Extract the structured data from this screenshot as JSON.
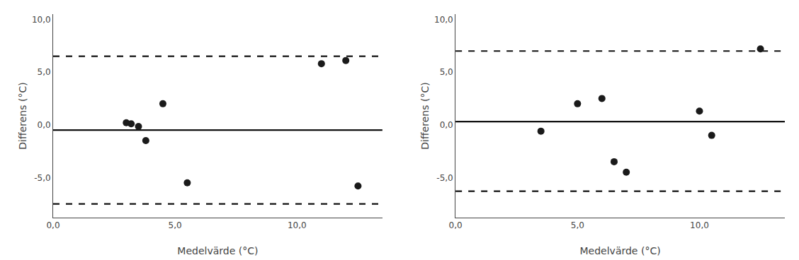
{
  "chart_data": [
    {
      "type": "scatter",
      "x": [
        3.0,
        3.2,
        3.5,
        3.8,
        4.5,
        5.5,
        11.0,
        12.0,
        12.5
      ],
      "values": [
        0.2,
        0.1,
        -0.15,
        -1.5,
        2.0,
        -5.5,
        5.8,
        6.1,
        -5.8
      ],
      "color": "#1a1a1a",
      "marker": "circle",
      "hlines": [
        {
          "value": -0.5,
          "color": "#111111",
          "line_style": "solid"
        },
        {
          "value": 6.5,
          "color": "#111111",
          "line_style": "dashed"
        },
        {
          "value": -7.5,
          "color": "#111111",
          "line_style": "dashed"
        }
      ],
      "xlim": [
        0,
        13.5
      ],
      "ylim": [
        -8.8,
        10.5
      ],
      "xticks": [
        {
          "value": 0.0,
          "label": "0,0"
        },
        {
          "value": 5.0,
          "label": "5,0"
        },
        {
          "value": 10.0,
          "label": "10,0"
        }
      ],
      "yticks": [
        {
          "value": -5.0,
          "label": "-5,0"
        },
        {
          "value": 0.0,
          "label": "0,0"
        },
        {
          "value": 5.0,
          "label": "5,0"
        },
        {
          "value": 10.0,
          "label": "10,0"
        }
      ],
      "xlabel": "Medelvärde (°C)",
      "ylabel": "Differens (°C)",
      "grid": false
    },
    {
      "type": "scatter",
      "x": [
        3.5,
        5.0,
        6.0,
        6.5,
        7.0,
        10.0,
        10.5,
        12.5
      ],
      "values": [
        -0.6,
        2.0,
        2.5,
        -3.5,
        -4.5,
        1.3,
        -1.0,
        7.2
      ],
      "color": "#1a1a1a",
      "marker": "circle",
      "hlines": [
        {
          "value": 0.3,
          "color": "#111111",
          "line_style": "solid"
        },
        {
          "value": 7.0,
          "color": "#111111",
          "line_style": "dashed"
        },
        {
          "value": -6.3,
          "color": "#111111",
          "line_style": "dashed"
        }
      ],
      "xlim": [
        0,
        13.5
      ],
      "ylim": [
        -8.8,
        10.5
      ],
      "xticks": [
        {
          "value": 0.0,
          "label": "0,0"
        },
        {
          "value": 5.0,
          "label": "5,0"
        },
        {
          "value": 10.0,
          "label": "10,0"
        }
      ],
      "yticks": [
        {
          "value": -5.0,
          "label": "-5,0"
        },
        {
          "value": 0.0,
          "label": "0,0"
        },
        {
          "value": 5.0,
          "label": "5,0"
        },
        {
          "value": 10.0,
          "label": "10,0"
        }
      ],
      "xlabel": "Medelvärde (°C)",
      "ylabel": "Differens (°C)",
      "grid": false
    }
  ]
}
